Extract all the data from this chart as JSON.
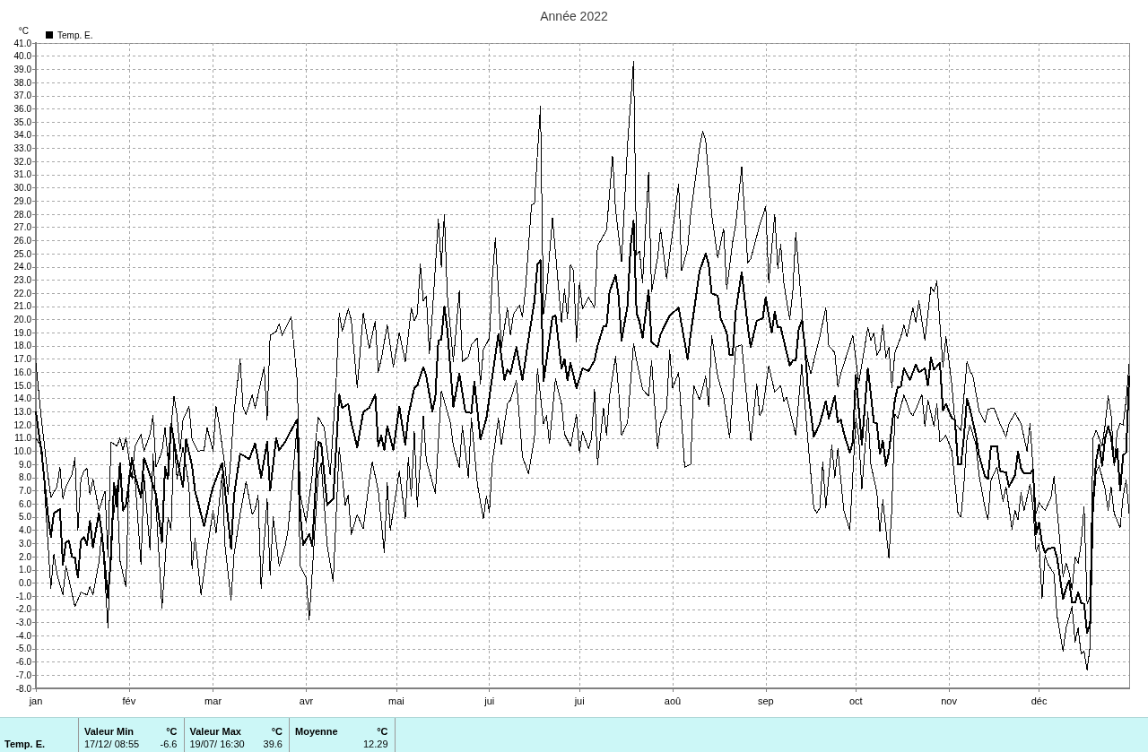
{
  "chart_data": {
    "type": "line",
    "title": "Année 2022",
    "ylabel": "°C",
    "legend": "top left",
    "grid": true,
    "marker": "none",
    "line_style": "solid",
    "xlim": [
      "2022-01-01",
      "2022-12-31"
    ],
    "xticks": [
      {
        "value": "2022-01-01",
        "label": "jan"
      },
      {
        "value": "2022-02-01",
        "label": "fév"
      },
      {
        "value": "2022-03-01",
        "label": "mar"
      },
      {
        "value": "2022-04-01",
        "label": "avr"
      },
      {
        "value": "2022-05-01",
        "label": "mai"
      },
      {
        "value": "2022-06-01",
        "label": "jui"
      },
      {
        "value": "2022-07-01",
        "label": "jui"
      },
      {
        "value": "2022-08-01",
        "label": "aoû"
      },
      {
        "value": "2022-09-01",
        "label": "sep"
      },
      {
        "value": "2022-10-01",
        "label": "oct"
      },
      {
        "value": "2022-11-01",
        "label": "nov"
      },
      {
        "value": "2022-12-01",
        "label": "déc"
      }
    ],
    "ylim": [
      -8,
      41
    ],
    "yticks": [
      {
        "value": -8,
        "label": "-8.0"
      },
      {
        "value": -7,
        "label": "-7.0"
      },
      {
        "value": -6,
        "label": "-6.0"
      },
      {
        "value": -5,
        "label": "-5.0"
      },
      {
        "value": -4,
        "label": "-4.0"
      },
      {
        "value": -3,
        "label": "-3.0"
      },
      {
        "value": -2,
        "label": "-2.0"
      },
      {
        "value": -1,
        "label": "-1.0"
      },
      {
        "value": 0,
        "label": "0.0"
      },
      {
        "value": 1,
        "label": "1.0"
      },
      {
        "value": 2,
        "label": "2.0"
      },
      {
        "value": 3,
        "label": "3.0"
      },
      {
        "value": 4,
        "label": "4.0"
      },
      {
        "value": 5,
        "label": "5.0"
      },
      {
        "value": 6,
        "label": "6.0"
      },
      {
        "value": 7,
        "label": "7.0"
      },
      {
        "value": 8,
        "label": "8.0"
      },
      {
        "value": 9,
        "label": "9.0"
      },
      {
        "value": 10,
        "label": "10.0"
      },
      {
        "value": 11,
        "label": "11.0"
      },
      {
        "value": 12,
        "label": "12.0"
      },
      {
        "value": 13,
        "label": "13.0"
      },
      {
        "value": 14,
        "label": "14.0"
      },
      {
        "value": 15,
        "label": "15.0"
      },
      {
        "value": 16,
        "label": "16.0"
      },
      {
        "value": 17,
        "label": "17.0"
      },
      {
        "value": 18,
        "label": "18.0"
      },
      {
        "value": 19,
        "label": "19.0"
      },
      {
        "value": 20,
        "label": "20.0"
      },
      {
        "value": 21,
        "label": "21.0"
      },
      {
        "value": 22,
        "label": "22.0"
      },
      {
        "value": 23,
        "label": "23.0"
      },
      {
        "value": 24,
        "label": "24.0"
      },
      {
        "value": 25,
        "label": "25.0"
      },
      {
        "value": 26,
        "label": "26.0"
      },
      {
        "value": 27,
        "label": "27.0"
      },
      {
        "value": 28,
        "label": "28.0"
      },
      {
        "value": 29,
        "label": "29.0"
      },
      {
        "value": 30,
        "label": "30.0"
      },
      {
        "value": 31,
        "label": "31.0"
      },
      {
        "value": 32,
        "label": "32.0"
      },
      {
        "value": 33,
        "label": "33.0"
      },
      {
        "value": 34,
        "label": "34.0"
      },
      {
        "value": 35,
        "label": "35.0"
      },
      {
        "value": 36,
        "label": "36.0"
      },
      {
        "value": 37,
        "label": "37.0"
      },
      {
        "value": 38,
        "label": "38.0"
      },
      {
        "value": 39,
        "label": "39.0"
      },
      {
        "value": 40,
        "label": "40.0"
      },
      {
        "value": 41,
        "label": "41.0"
      }
    ],
    "annotations": [
      "Temp. E.",
      "Valeur Min",
      "°C",
      "17/12/ 08:55",
      "-6.6",
      "Valeur Max",
      "°C",
      "19/07/ 16:30",
      "39.6",
      "Moyenne",
      "°C",
      "12.29"
    ],
    "series": [
      {
        "name": "Temp. E.",
        "color": "#000000",
        "x": [
          "2022-01-01",
          "2022-01-03",
          "2022-01-05",
          "2022-01-06",
          "2022-01-07",
          "2022-01-09",
          "2022-01-10",
          "2022-01-11",
          "2022-01-12",
          "2022-01-13",
          "2022-01-14",
          "2022-01-15",
          "2022-01-16",
          "2022-01-17",
          "2022-01-18",
          "2022-01-19",
          "2022-01-20",
          "2022-01-22",
          "2022-01-23",
          "2022-01-25",
          "2022-01-26",
          "2022-01-27",
          "2022-01-28",
          "2022-01-29",
          "2022-01-30",
          "2022-01-31",
          "2022-02-02",
          "2022-02-03",
          "2022-02-05",
          "2022-02-06",
          "2022-02-08",
          "2022-02-09",
          "2022-02-10",
          "2022-02-12",
          "2022-02-13",
          "2022-02-14",
          "2022-02-15",
          "2022-02-17",
          "2022-02-19",
          "2022-02-20",
          "2022-02-22",
          "2022-02-23",
          "2022-02-26",
          "2022-02-28",
          "2022-03-01",
          "2022-03-04",
          "2022-03-05",
          "2022-03-07",
          "2022-03-08",
          "2022-03-10",
          "2022-03-11",
          "2022-03-13",
          "2022-03-15",
          "2022-03-17",
          "2022-03-19",
          "2022-03-20",
          "2022-03-22",
          "2022-03-23",
          "2022-03-25",
          "2022-03-27",
          "2022-03-29",
          "2022-03-30",
          "2022-03-31",
          "2022-04-02",
          "2022-04-03",
          "2022-04-05",
          "2022-04-06",
          "2022-04-08",
          "2022-04-10",
          "2022-04-12",
          "2022-04-13",
          "2022-04-15",
          "2022-04-16",
          "2022-04-18",
          "2022-04-20",
          "2022-04-22",
          "2022-04-24",
          "2022-04-25",
          "2022-04-26",
          "2022-04-27",
          "2022-04-28",
          "2022-04-30",
          "2022-05-02",
          "2022-05-04",
          "2022-05-05",
          "2022-05-07",
          "2022-05-08",
          "2022-05-10",
          "2022-05-11",
          "2022-05-13",
          "2022-05-14",
          "2022-05-15",
          "2022-05-16",
          "2022-05-17",
          "2022-05-18",
          "2022-05-20",
          "2022-05-22",
          "2022-05-24",
          "2022-05-26",
          "2022-05-27",
          "2022-05-29",
          "2022-05-31",
          "2022-06-02",
          "2022-06-04",
          "2022-06-06",
          "2022-06-07",
          "2022-06-08",
          "2022-06-10",
          "2022-06-12",
          "2022-06-14",
          "2022-06-16",
          "2022-06-17",
          "2022-06-18",
          "2022-06-19",
          "2022-06-20",
          "2022-06-22",
          "2022-06-23",
          "2022-06-25",
          "2022-06-26",
          "2022-06-27",
          "2022-06-28",
          "2022-06-30",
          "2022-07-02",
          "2022-07-04",
          "2022-07-06",
          "2022-07-07",
          "2022-07-09",
          "2022-07-10",
          "2022-07-11",
          "2022-07-13",
          "2022-07-14",
          "2022-07-15",
          "2022-07-17",
          "2022-07-18",
          "2022-07-19",
          "2022-07-20",
          "2022-07-21",
          "2022-07-22",
          "2022-07-24",
          "2022-07-25",
          "2022-07-27",
          "2022-07-28",
          "2022-07-31",
          "2022-08-03",
          "2022-08-06",
          "2022-08-07",
          "2022-08-10",
          "2022-08-12",
          "2022-08-13",
          "2022-08-14",
          "2022-08-16",
          "2022-08-17",
          "2022-08-19",
          "2022-08-20",
          "2022-08-21",
          "2022-08-22",
          "2022-08-24",
          "2022-08-26",
          "2022-08-27",
          "2022-08-29",
          "2022-08-31",
          "2022-09-01",
          "2022-09-03",
          "2022-09-04",
          "2022-09-05",
          "2022-09-06",
          "2022-09-09",
          "2022-09-10",
          "2022-09-11",
          "2022-09-12",
          "2022-09-13",
          "2022-09-14",
          "2022-09-15",
          "2022-09-17",
          "2022-09-19",
          "2022-09-21",
          "2022-09-22",
          "2022-09-24",
          "2022-09-25",
          "2022-09-26",
          "2022-09-27",
          "2022-09-29",
          "2022-09-30",
          "2022-10-01",
          "2022-10-02",
          "2022-10-03",
          "2022-10-05",
          "2022-10-06",
          "2022-10-07",
          "2022-10-08",
          "2022-10-09",
          "2022-10-10",
          "2022-10-11",
          "2022-10-12",
          "2022-10-14",
          "2022-10-15",
          "2022-10-16",
          "2022-10-17",
          "2022-10-19",
          "2022-10-21",
          "2022-10-22",
          "2022-10-24",
          "2022-10-25",
          "2022-10-26",
          "2022-10-27",
          "2022-10-29",
          "2022-10-30",
          "2022-10-31",
          "2022-11-02",
          "2022-11-03",
          "2022-11-04",
          "2022-11-05",
          "2022-11-06",
          "2022-11-07",
          "2022-11-08",
          "2022-11-10",
          "2022-11-11",
          "2022-11-13",
          "2022-11-14",
          "2022-11-15",
          "2022-11-17",
          "2022-11-18",
          "2022-11-20",
          "2022-11-21",
          "2022-11-23",
          "2022-11-24",
          "2022-11-25",
          "2022-11-26",
          "2022-11-28",
          "2022-11-29",
          "2022-11-30",
          "2022-12-01",
          "2022-12-02",
          "2022-12-03",
          "2022-12-04",
          "2022-12-06",
          "2022-12-07",
          "2022-12-09",
          "2022-12-10",
          "2022-12-11",
          "2022-12-12",
          "2022-12-13",
          "2022-12-14",
          "2022-12-15",
          "2022-12-16",
          "2022-12-17",
          "2022-12-18",
          "2022-12-19",
          "2022-12-20",
          "2022-12-21",
          "2022-12-22",
          "2022-12-23",
          "2022-12-24",
          "2022-12-25",
          "2022-12-26",
          "2022-12-27",
          "2022-12-28",
          "2022-12-29",
          "2022-12-30",
          "2022-12-31"
        ],
        "values": [
          13.0,
          9.7,
          5.2,
          3.5,
          5.3,
          5.6,
          1.4,
          3.1,
          3.2,
          2.0,
          1.9,
          0.4,
          3.2,
          3.5,
          2.9,
          4.7,
          2.7,
          5.3,
          3.7,
          -1.1,
          1.9,
          7.6,
          5.8,
          9.1,
          5.5,
          5.9,
          9.5,
          8.2,
          6.5,
          9.5,
          8.2,
          7.4,
          6.7,
          3.1,
          8.8,
          7.9,
          12.1,
          9.4,
          7.3,
          10.9,
          8.9,
          7.0,
          4.3,
          6.4,
          7.3,
          9.1,
          7.0,
          2.6,
          6.7,
          9.8,
          9.7,
          9.4,
          10.6,
          8.0,
          10.7,
          7.0,
          11.0,
          10.1,
          10.7,
          11.6,
          12.4,
          5.2,
          2.9,
          3.7,
          2.8,
          10.7,
          10.6,
          5.9,
          6.4,
          14.3,
          13.3,
          13.6,
          12.2,
          10.3,
          13.0,
          13.3,
          14.3,
          10.4,
          11.2,
          10.1,
          11.9,
          10.1,
          13.4,
          10.5,
          12.7,
          14.8,
          15.0,
          16.4,
          15.7,
          13.0,
          14.1,
          18.4,
          18.5,
          21.0,
          19.2,
          13.4,
          15.9,
          13.0,
          12.9,
          15.3,
          10.9,
          12.5,
          15.7,
          18.9,
          15.4,
          16.2,
          15.9,
          17.9,
          15.4,
          18.5,
          21.4,
          24.2,
          24.5,
          15.3,
          16.9,
          20.2,
          20.3,
          16.3,
          17.0,
          15.4,
          16.7,
          14.8,
          16.3,
          16.1,
          16.9,
          18.0,
          19.5,
          19.5,
          22.1,
          23.4,
          21.8,
          18.4,
          21.1,
          25.6,
          27.5,
          20.5,
          19.8,
          18.6,
          22.2,
          18.3,
          17.9,
          18.9,
          20.3,
          20.9,
          17.0,
          18.9,
          23.7,
          25.0,
          24.2,
          22.0,
          21.8,
          20.1,
          19.0,
          17.3,
          17.3,
          20.6,
          23.6,
          19.5,
          17.9,
          19.9,
          20.1,
          21.7,
          19.0,
          20.6,
          19.4,
          19.4,
          16.5,
          16.9,
          16.9,
          19.3,
          19.9,
          18.1,
          14.8,
          11.1,
          12.1,
          13.8,
          12.5,
          14.2,
          12.2,
          12.4,
          11.4,
          9.9,
          10.7,
          15.8,
          13.2,
          10.5,
          16.3,
          14.3,
          12.2,
          12.1,
          9.8,
          10.8,
          8.9,
          9.9,
          13.9,
          14.9,
          14.9,
          16.3,
          15.4,
          16.6,
          16.0,
          16.3,
          15.0,
          17.1,
          16.2,
          16.7,
          13.1,
          13.6,
          12.5,
          12.4,
          9.0,
          9.0,
          11.1,
          14.0,
          13.2,
          11.2,
          9.7,
          8.1,
          7.9,
          10.4,
          10.4,
          8.5,
          8.4,
          7.3,
          8.2,
          10.0,
          8.7,
          8.3,
          8.3,
          8.6,
          3.7,
          4.6,
          3.0,
          2.3,
          2.6,
          2.7,
          1.9,
          -1.2,
          -0.4,
          0.2,
          -1.5,
          -1.5,
          -0.7,
          -1.5,
          -1.6,
          -3.8,
          -3.1,
          6.3,
          9.3,
          10.5,
          8.9,
          11.0,
          11.9,
          11.1,
          9.1,
          10.2,
          7.0,
          9.7,
          9.9,
          15.7
        ]
      },
      {
        "color": "#000000",
        "x": [
          "2022-01-01",
          "2022-01-03",
          "2022-01-05",
          "2022-01-06",
          "2022-01-08",
          "2022-01-09",
          "2022-01-10",
          "2022-01-11",
          "2022-01-13",
          "2022-01-14",
          "2022-01-15",
          "2022-01-16",
          "2022-01-17",
          "2022-01-18",
          "2022-01-19",
          "2022-01-20",
          "2022-01-22",
          "2022-01-24",
          "2022-01-25",
          "2022-01-26",
          "2022-01-28",
          "2022-01-29",
          "2022-01-30",
          "2022-01-31",
          "2022-02-02",
          "2022-02-03",
          "2022-02-05",
          "2022-02-06",
          "2022-02-08",
          "2022-02-09",
          "2022-02-10",
          "2022-02-12",
          "2022-02-13",
          "2022-02-14",
          "2022-02-16",
          "2022-02-17",
          "2022-02-18",
          "2022-02-19",
          "2022-02-21",
          "2022-02-22",
          "2022-02-24",
          "2022-02-26",
          "2022-02-27",
          "2022-03-01",
          "2022-03-02",
          "2022-03-03",
          "2022-03-05",
          "2022-03-06",
          "2022-03-08",
          "2022-03-10",
          "2022-03-11",
          "2022-03-12",
          "2022-03-14",
          "2022-03-15",
          "2022-03-18",
          "2022-03-19",
          "2022-03-20",
          "2022-03-22",
          "2022-03-23",
          "2022-03-24",
          "2022-03-27",
          "2022-03-29",
          "2022-03-30",
          "2022-04-01",
          "2022-04-03",
          "2022-04-05",
          "2022-04-07",
          "2022-04-09",
          "2022-04-11",
          "2022-04-12",
          "2022-04-13",
          "2022-04-15",
          "2022-04-16",
          "2022-04-18",
          "2022-04-20",
          "2022-04-22",
          "2022-04-24",
          "2022-04-25",
          "2022-04-26",
          "2022-04-28",
          "2022-04-30",
          "2022-05-02",
          "2022-05-04",
          "2022-05-06",
          "2022-05-07",
          "2022-05-08",
          "2022-05-09",
          "2022-05-10",
          "2022-05-11",
          "2022-05-12",
          "2022-05-13",
          "2022-05-15",
          "2022-05-16",
          "2022-05-17",
          "2022-05-18",
          "2022-05-20",
          "2022-05-22",
          "2022-05-23",
          "2022-05-25",
          "2022-05-26",
          "2022-05-28",
          "2022-05-29",
          "2022-05-30",
          "2022-06-01",
          "2022-06-02",
          "2022-06-03",
          "2022-06-05",
          "2022-06-07",
          "2022-06-08",
          "2022-06-09",
          "2022-06-11",
          "2022-06-12",
          "2022-06-13",
          "2022-06-15",
          "2022-06-16",
          "2022-06-17",
          "2022-06-18",
          "2022-06-19",
          "2022-06-20",
          "2022-06-22",
          "2022-06-23",
          "2022-06-25",
          "2022-06-26",
          "2022-06-27",
          "2022-06-28",
          "2022-06-29",
          "2022-06-30",
          "2022-07-01",
          "2022-07-02",
          "2022-07-04",
          "2022-07-06",
          "2022-07-07",
          "2022-07-10",
          "2022-07-12",
          "2022-07-13",
          "2022-07-15",
          "2022-07-17",
          "2022-07-19",
          "2022-07-20",
          "2022-07-21",
          "2022-07-22",
          "2022-07-24",
          "2022-07-25",
          "2022-07-27",
          "2022-07-28",
          "2022-07-30",
          "2022-08-03",
          "2022-08-04",
          "2022-08-06",
          "2022-08-07",
          "2022-08-10",
          "2022-08-11",
          "2022-08-12",
          "2022-08-14",
          "2022-08-16",
          "2022-08-18",
          "2022-08-19",
          "2022-08-21",
          "2022-08-22",
          "2022-08-24",
          "2022-08-26",
          "2022-08-27",
          "2022-08-30",
          "2022-09-01",
          "2022-09-02",
          "2022-09-04",
          "2022-09-05",
          "2022-09-06",
          "2022-09-07",
          "2022-09-09",
          "2022-09-10",
          "2022-09-11",
          "2022-09-13",
          "2022-09-14",
          "2022-09-16",
          "2022-09-19",
          "2022-09-21",
          "2022-09-22",
          "2022-09-24",
          "2022-09-25",
          "2022-09-26",
          "2022-09-27",
          "2022-09-30",
          "2022-10-02",
          "2022-10-05",
          "2022-10-06",
          "2022-10-07",
          "2022-10-08",
          "2022-10-09",
          "2022-10-10",
          "2022-10-11",
          "2022-10-12",
          "2022-10-13",
          "2022-10-14",
          "2022-10-16",
          "2022-10-17",
          "2022-10-18",
          "2022-10-20",
          "2022-10-21",
          "2022-10-22",
          "2022-10-24",
          "2022-10-26",
          "2022-10-27",
          "2022-10-28",
          "2022-10-30",
          "2022-10-31",
          "2022-11-02",
          "2022-11-03",
          "2022-11-05",
          "2022-11-07",
          "2022-11-08",
          "2022-11-09",
          "2022-11-11",
          "2022-11-13",
          "2022-11-14",
          "2022-11-16",
          "2022-11-18",
          "2022-11-20",
          "2022-11-21",
          "2022-11-23",
          "2022-11-25",
          "2022-11-27",
          "2022-11-28",
          "2022-11-30",
          "2022-12-01",
          "2022-12-03",
          "2022-12-05",
          "2022-12-06",
          "2022-12-08",
          "2022-12-09",
          "2022-12-10",
          "2022-12-11",
          "2022-12-12",
          "2022-12-13",
          "2022-12-14",
          "2022-12-15",
          "2022-12-16",
          "2022-12-17",
          "2022-12-18",
          "2022-12-19",
          "2022-12-20",
          "2022-12-22",
          "2022-12-23",
          "2022-12-24",
          "2022-12-25",
          "2022-12-26",
          "2022-12-27",
          "2022-12-28",
          "2022-12-29",
          "2022-12-30",
          "2022-12-31"
        ],
        "values": [
          16.7,
          12.1,
          8.2,
          6.5,
          7.3,
          8.8,
          6.4,
          7.3,
          8.2,
          9.5,
          4.0,
          7.9,
          8.5,
          8.7,
          6.7,
          7.9,
          5.5,
          7.0,
          2.0,
          10.7,
          10.4,
          11.0,
          10.1,
          11.0,
          7.9,
          10.4,
          11.3,
          10.0,
          11.3,
          12.7,
          8.8,
          10.0,
          11.8,
          9.4,
          14.2,
          12.7,
          10.0,
          12.4,
          13.4,
          10.9,
          10.0,
          10.1,
          11.8,
          10.0,
          13.4,
          12.1,
          8.8,
          6.7,
          13.0,
          17.0,
          13.3,
          12.8,
          14.3,
          13.3,
          16.4,
          12.4,
          18.8,
          19.1,
          19.7,
          18.8,
          20.2,
          15.4,
          6.7,
          4.6,
          8.2,
          12.6,
          11.8,
          8.2,
          15.4,
          20.5,
          19.1,
          20.8,
          20.0,
          14.8,
          20.5,
          17.8,
          19.9,
          16.0,
          17.0,
          19.6,
          16.4,
          19.0,
          16.8,
          20.9,
          19.9,
          20.4,
          24.2,
          21.4,
          21.8,
          17.4,
          20.4,
          27.6,
          24.0,
          28.0,
          21.8,
          16.8,
          22.2,
          16.8,
          17.2,
          18.1,
          18.6,
          15.1,
          17.7,
          18.6,
          23.3,
          26.2,
          17.9,
          20.9,
          18.8,
          20.4,
          21.1,
          20.2,
          22.3,
          28.7,
          28.8,
          32.6,
          36.2,
          20.4,
          22.1,
          27.7,
          25.1,
          19.8,
          22.3,
          20.1,
          24.2,
          23.7,
          18.3,
          22.8,
          20.8,
          21.7,
          20.9,
          25.6,
          26.8,
          32.4,
          28.4,
          24.4,
          33.3,
          39.6,
          24.9,
          25.2,
          22.8,
          31.2,
          22.1,
          24.7,
          26.9,
          23.1,
          30.3,
          23.7,
          25.4,
          28.0,
          33.1,
          34.3,
          33.6,
          28.0,
          24.7,
          26.9,
          22.3,
          25.9,
          27.2,
          31.6,
          24.3,
          24.6,
          27.2,
          28.6,
          22.8,
          28.0,
          23.9,
          25.7,
          22.8,
          20.0,
          22.1,
          26.6,
          20.9,
          17.8,
          15.9,
          18.7,
          20.9,
          18.0,
          17.5,
          14.9,
          15.9,
          16.6,
          18.8,
          15.2,
          19.4,
          18.4,
          19.0,
          17.3,
          17.7,
          19.6,
          17.1,
          17.9,
          14.8,
          17.5,
          18.7,
          19.6,
          18.7,
          20.9,
          19.8,
          21.4,
          18.4,
          22.5,
          22.1,
          22.9,
          16.4,
          18.7,
          15.0,
          12.1,
          11.6,
          16.8,
          16.1,
          15.7,
          13.1,
          12.2,
          13.2,
          13.3,
          12.1,
          11.1,
          12.1,
          12.9,
          12.1,
          10.0,
          12.1,
          5.3,
          6.1,
          5.5,
          6.5,
          8.1,
          3.0,
          0.5,
          1.5,
          0.8,
          -0.5,
          2.0,
          1.5,
          3.0,
          5.8,
          -1.6,
          -1.0,
          11.0,
          11.6,
          10.4,
          12.0,
          14.2,
          12.8,
          8.9,
          11.5,
          12.1,
          12.0,
          13.9,
          16.6
        ]
      },
      {
        "color": "#000000",
        "x": [
          "2022-01-01",
          "2022-01-03",
          "2022-01-05",
          "2022-01-06",
          "2022-01-07",
          "2022-01-08",
          "2022-01-10",
          "2022-01-11",
          "2022-01-14",
          "2022-01-16",
          "2022-01-18",
          "2022-01-19",
          "2022-01-20",
          "2022-01-22",
          "2022-01-23",
          "2022-01-25",
          "2022-01-26",
          "2022-01-28",
          "2022-01-29",
          "2022-01-31",
          "2022-02-01",
          "2022-02-03",
          "2022-02-05",
          "2022-02-06",
          "2022-02-08",
          "2022-02-09",
          "2022-02-12",
          "2022-02-14",
          "2022-02-15",
          "2022-02-16",
          "2022-02-17",
          "2022-02-19",
          "2022-02-21",
          "2022-02-22",
          "2022-02-23",
          "2022-02-25",
          "2022-02-27",
          "2022-03-01",
          "2022-03-02",
          "2022-03-04",
          "2022-03-05",
          "2022-03-07",
          "2022-03-08",
          "2022-03-10",
          "2022-03-12",
          "2022-03-14",
          "2022-03-15",
          "2022-03-16",
          "2022-03-17",
          "2022-03-19",
          "2022-03-20",
          "2022-03-21",
          "2022-03-23",
          "2022-03-25",
          "2022-03-26",
          "2022-03-29",
          "2022-03-30",
          "2022-04-01",
          "2022-04-02",
          "2022-04-03",
          "2022-04-05",
          "2022-04-06",
          "2022-04-08",
          "2022-04-10",
          "2022-04-12",
          "2022-04-14",
          "2022-04-15",
          "2022-04-16",
          "2022-04-18",
          "2022-04-20",
          "2022-04-22",
          "2022-04-23",
          "2022-04-25",
          "2022-04-27",
          "2022-04-28",
          "2022-04-29",
          "2022-05-02",
          "2022-05-04",
          "2022-05-05",
          "2022-05-06",
          "2022-05-07",
          "2022-05-08",
          "2022-05-10",
          "2022-05-11",
          "2022-05-12",
          "2022-05-14",
          "2022-05-16",
          "2022-05-19",
          "2022-05-20",
          "2022-05-22",
          "2022-05-23",
          "2022-05-25",
          "2022-05-26",
          "2022-05-28",
          "2022-05-30",
          "2022-05-31",
          "2022-06-01",
          "2022-06-02",
          "2022-06-04",
          "2022-06-05",
          "2022-06-07",
          "2022-06-08",
          "2022-06-10",
          "2022-06-12",
          "2022-06-14",
          "2022-06-16",
          "2022-06-17",
          "2022-06-19",
          "2022-06-20",
          "2022-06-21",
          "2022-06-23",
          "2022-06-25",
          "2022-06-26",
          "2022-06-28",
          "2022-06-30",
          "2022-07-01",
          "2022-07-02",
          "2022-07-04",
          "2022-07-05",
          "2022-07-06",
          "2022-07-07",
          "2022-07-09",
          "2022-07-10",
          "2022-07-11",
          "2022-07-13",
          "2022-07-14",
          "2022-07-15",
          "2022-07-17",
          "2022-07-19",
          "2022-07-20",
          "2022-07-22",
          "2022-07-24",
          "2022-07-25",
          "2022-07-27",
          "2022-07-28",
          "2022-07-30",
          "2022-07-31",
          "2022-08-01",
          "2022-08-03",
          "2022-08-05",
          "2022-08-07",
          "2022-08-08",
          "2022-08-10",
          "2022-08-12",
          "2022-08-13",
          "2022-08-14",
          "2022-08-16",
          "2022-08-18",
          "2022-08-20",
          "2022-08-22",
          "2022-08-24",
          "2022-08-25",
          "2022-08-27",
          "2022-08-29",
          "2022-08-30",
          "2022-08-31",
          "2022-09-02",
          "2022-09-04",
          "2022-09-06",
          "2022-09-07",
          "2022-09-08",
          "2022-09-11",
          "2022-09-13",
          "2022-09-15",
          "2022-09-17",
          "2022-09-18",
          "2022-09-19",
          "2022-09-20",
          "2022-09-21",
          "2022-09-23",
          "2022-09-24",
          "2022-09-25",
          "2022-09-27",
          "2022-09-29",
          "2022-10-01",
          "2022-10-02",
          "2022-10-03",
          "2022-10-05",
          "2022-10-06",
          "2022-10-08",
          "2022-10-09",
          "2022-10-10",
          "2022-10-12",
          "2022-10-13",
          "2022-10-14",
          "2022-10-15",
          "2022-10-17",
          "2022-10-19",
          "2022-10-20",
          "2022-10-21",
          "2022-10-23",
          "2022-10-24",
          "2022-10-25",
          "2022-10-27",
          "2022-10-28",
          "2022-10-29",
          "2022-10-31",
          "2022-11-02",
          "2022-11-04",
          "2022-11-05",
          "2022-11-06",
          "2022-11-07",
          "2022-11-08",
          "2022-11-10",
          "2022-11-11",
          "2022-11-13",
          "2022-11-14",
          "2022-11-15",
          "2022-11-17",
          "2022-11-19",
          "2022-11-20",
          "2022-11-22",
          "2022-11-23",
          "2022-11-24",
          "2022-11-25",
          "2022-11-26",
          "2022-11-28",
          "2022-11-29",
          "2022-11-30",
          "2022-12-01",
          "2022-12-02",
          "2022-12-03",
          "2022-12-04",
          "2022-12-06",
          "2022-12-07",
          "2022-12-09",
          "2022-12-10",
          "2022-12-12",
          "2022-12-13",
          "2022-12-14",
          "2022-12-15",
          "2022-12-16",
          "2022-12-17",
          "2022-12-18",
          "2022-12-19",
          "2022-12-20",
          "2022-12-21",
          "2022-12-23",
          "2022-12-24",
          "2022-12-25",
          "2022-12-26",
          "2022-12-28",
          "2022-12-29",
          "2022-12-30",
          "2022-12-31"
        ],
        "values": [
          11.0,
          10.3,
          3.1,
          -0.4,
          2.2,
          0.7,
          -0.9,
          1.3,
          -1.8,
          -0.7,
          -0.9,
          -0.3,
          -0.9,
          1.6,
          4.0,
          -3.4,
          3.4,
          7.4,
          1.7,
          -0.3,
          8.2,
          8.0,
          1.4,
          8.2,
          2.5,
          9.8,
          -1.9,
          5.0,
          4.0,
          10.8,
          7.9,
          10.3,
          7.3,
          1.1,
          3.4,
          -0.9,
          2.5,
          5.5,
          3.8,
          8.2,
          2.8,
          -1.3,
          2.2,
          5.2,
          7.7,
          5.2,
          5.6,
          6.7,
          -0.4,
          6.4,
          0.6,
          5.0,
          1.3,
          2.8,
          4.1,
          12.0,
          1.3,
          0.4,
          -2.8,
          0.7,
          8.2,
          9.1,
          2.8,
          0.1,
          10.3,
          5.9,
          6.7,
          3.7,
          5.2,
          4.1,
          7.7,
          9.2,
          7.0,
          2.3,
          7.6,
          4.0,
          8.5,
          4.9,
          9.5,
          6.6,
          11.5,
          5.8,
          12.7,
          9.3,
          8.5,
          6.8,
          14.6,
          12.2,
          10.4,
          8.8,
          11.9,
          8.0,
          12.5,
          7.5,
          4.9,
          6.6,
          5.4,
          9.2,
          12.5,
          10.5,
          13.6,
          13.9,
          15.4,
          9.6,
          8.3,
          11.0,
          16.3,
          12.1,
          12.7,
          10.6,
          15.5,
          13.6,
          11.3,
          10.4,
          12.8,
          9.9,
          11.5,
          10.2,
          11.0,
          14.7,
          9.0,
          13.3,
          11.2,
          14.2,
          17.2,
          14.7,
          11.2,
          12.2,
          18.2,
          16.9,
          14.7,
          14.2,
          16.9,
          10.2,
          12.1,
          13.2,
          17.7,
          14.8,
          16.0,
          8.8,
          9.0,
          15.0,
          13.9,
          15.7,
          13.4,
          18.8,
          15.7,
          14.1,
          11.0,
          17.9,
          18.1,
          15.7,
          10.8,
          15.1,
          12.7,
          13.2,
          16.5,
          14.5,
          15.0,
          13.8,
          14.1,
          11.2,
          16.6,
          10.9,
          5.7,
          5.3,
          5.7,
          9.2,
          5.7,
          10.5,
          8.0,
          10.2,
          5.5,
          4.0,
          12.5,
          11.0,
          7.1,
          13.0,
          9.0,
          6.9,
          3.9,
          6.3,
          1.9,
          5.7,
          12.8,
          12.5,
          14.3,
          13.0,
          12.7,
          13.2,
          14.3,
          11.9,
          13.9,
          11.9,
          13.6,
          10.7,
          11.2,
          10.0,
          5.3,
          5.0,
          7.5,
          11.0,
          12.0,
          10.5,
          8.2,
          5.7,
          4.8,
          7.8,
          8.8,
          6.2,
          7.3,
          4.1,
          5.5,
          4.8,
          6.9,
          5.5,
          7.5,
          5.7,
          2.4,
          3.0,
          -1.2,
          2.1,
          1.4,
          0.7,
          -2.5,
          -5.2,
          -3.4,
          -1.8,
          -4.5,
          -3.4,
          -5.4,
          -5.2,
          -6.6,
          -4.8,
          5.5,
          8.4,
          8.9,
          7.1,
          5.5,
          7.3,
          5.3,
          4.2,
          6.6,
          7.8,
          5.3
        ]
      }
    ]
  }
}
